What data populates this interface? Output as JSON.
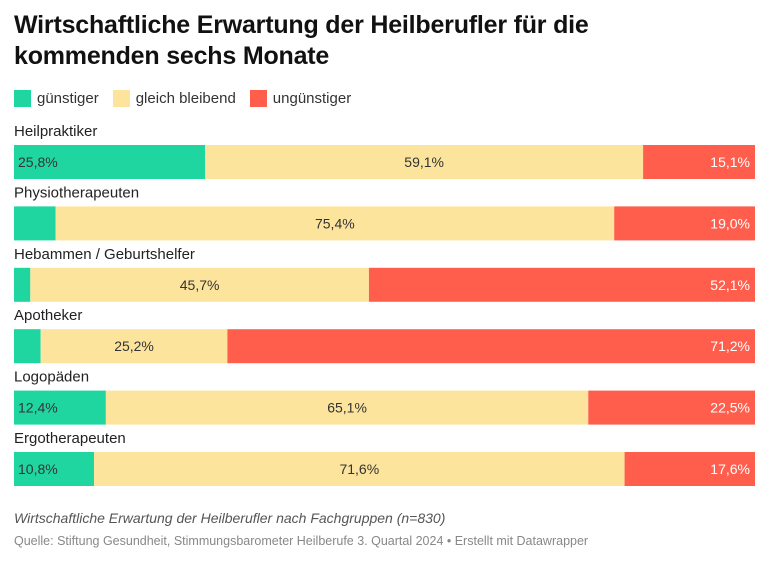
{
  "title": "Wirtschaftliche Erwartung der Heilberufler für die kommenden sechs Monate",
  "note": "Wirtschaftliche Erwartung der Heilberufler nach Fachgruppen (n=830)",
  "source": "Quelle: Stiftung Gesundheit, Stimmungsbarometer Heilberufe 3. Quartal 2024 • Erstellt mit Datawrapper",
  "chart_data": {
    "type": "bar",
    "orientation": "horizontal",
    "stacked": true,
    "normalized": true,
    "categories": [
      "Heilpraktiker",
      "Physiotherapeuten",
      "Hebammen / Geburtshelfer",
      "Apotheker",
      "Logopäden",
      "Ergotherapeuten"
    ],
    "series": [
      {
        "name": "günstiger",
        "color": "#1fd6a0",
        "values": [
          25.8,
          5.6,
          2.2,
          3.6,
          12.4,
          10.8
        ],
        "labels": [
          "25,8%",
          "",
          "",
          "",
          "12,4%",
          "10,8%"
        ]
      },
      {
        "name": "gleich bleibend",
        "color": "#fde49d",
        "values": [
          59.1,
          75.4,
          45.7,
          25.2,
          65.1,
          71.6
        ],
        "labels": [
          "59,1%",
          "75,4%",
          "45,7%",
          "25,2%",
          "65,1%",
          "71,6%"
        ]
      },
      {
        "name": "ungünstiger",
        "color": "#ff5e4c",
        "values": [
          15.1,
          19.0,
          52.1,
          71.2,
          22.5,
          17.6
        ],
        "labels": [
          "15,1%",
          "19,0%",
          "52,1%",
          "71,2%",
          "22,5%",
          "17,6%"
        ]
      }
    ],
    "xlim": [
      0,
      100
    ],
    "legend_position": "top-left",
    "grid": false
  }
}
